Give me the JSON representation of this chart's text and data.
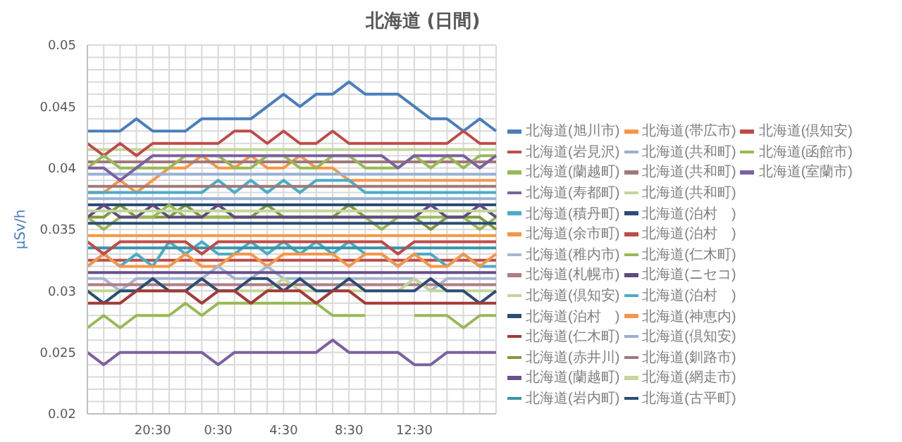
{
  "chart_data": {
    "type": "line",
    "title": "北海道 (日間)",
    "ylabel": "μSv/h",
    "categories": [
      null,
      null,
      null,
      null,
      "20:30",
      null,
      null,
      null,
      "0:30",
      null,
      null,
      null,
      "4:30",
      null,
      null,
      null,
      "8:30",
      null,
      null,
      null,
      "12:30",
      null,
      null,
      null,
      null,
      null
    ],
    "ylim": [
      0.02,
      0.05
    ],
    "yticks": [
      0.02,
      {
        "value": 0.021,
        "label": null
      },
      {
        "value": 0.022,
        "label": null
      },
      {
        "value": 0.023,
        "label": null
      },
      {
        "value": 0.024,
        "label": null
      },
      0.025,
      {
        "value": 0.026,
        "label": null
      },
      {
        "value": 0.027,
        "label": null
      },
      {
        "value": 0.028,
        "label": null
      },
      {
        "value": 0.029,
        "label": null
      },
      0.03,
      {
        "value": 0.031,
        "label": null
      },
      {
        "value": 0.032,
        "label": null
      },
      {
        "value": 0.033,
        "label": null
      },
      0.035,
      {
        "value": 0.038,
        "label": null
      },
      {
        "value": 0.039,
        "label": null
      },
      0.04,
      {
        "value": 0.041,
        "label": null
      },
      {
        "value": 0.042,
        "label": null
      },
      {
        "value": 0.043,
        "label": null
      },
      {
        "value": 0.044,
        "label": null
      },
      0.045,
      {
        "value": 0.046,
        "label": null
      },
      {
        "value": 0.047,
        "label": null
      },
      {
        "value": 0.048,
        "label": null
      },
      {
        "value": 0.049,
        "label": null
      },
      0.05
    ],
    "grid": true,
    "legend": "right",
    "marker": "none",
    "line_style": "solid",
    "series": [
      {
        "name": "北海道(旭川市)",
        "color": "#4a7ebb",
        "values": [
          0.043,
          0.043,
          0.043,
          0.044,
          0.043,
          0.043,
          0.043,
          0.044,
          0.044,
          0.044,
          0.044,
          0.045,
          0.046,
          0.045,
          0.046,
          0.046,
          0.047,
          0.046,
          0.046,
          0.046,
          0.045,
          0.044,
          0.044,
          0.043,
          0.044,
          0.043
        ]
      },
      {
        "name": "北海道(岩見沢)",
        "color": "#be4b48",
        "values": [
          0.0325,
          0.0325,
          0.0325,
          0.0325,
          0.0325,
          0.0325,
          0.0325,
          0.0325,
          0.0325,
          0.0325,
          0.0325,
          0.0325,
          0.0325,
          0.0325,
          0.0325,
          0.0325,
          0.0325,
          0.0325,
          0.0325,
          0.0325,
          0.0325,
          0.0325,
          0.0325,
          0.0325,
          0.0325,
          0.0325
        ]
      },
      {
        "name": "北海道(蘭越町)",
        "color": "#98b954",
        "values": [
          0.027,
          0.028,
          0.027,
          0.028,
          0.028,
          0.028,
          0.029,
          0.028,
          0.029,
          0.029,
          0.029,
          0.029,
          0.029,
          0.029,
          0.029,
          0.028,
          0.028,
          0.028,
          null,
          null,
          0.028,
          0.028,
          0.028,
          0.027,
          0.028,
          0.028
        ]
      },
      {
        "name": "北海道(寿都町)",
        "color": "#7d60a0",
        "values": [
          0.025,
          0.024,
          0.025,
          0.025,
          0.025,
          0.025,
          0.025,
          0.025,
          0.024,
          0.025,
          0.025,
          0.025,
          0.025,
          0.025,
          0.025,
          0.026,
          0.025,
          0.025,
          0.025,
          0.025,
          0.024,
          0.024,
          0.025,
          0.025,
          0.025,
          0.025
        ]
      },
      {
        "name": "北海道(積丹町)",
        "color": "#4bacc6",
        "values": [
          0.032,
          0.033,
          0.032,
          0.033,
          0.032,
          0.034,
          0.033,
          0.034,
          0.033,
          0.033,
          0.034,
          0.033,
          0.034,
          0.033,
          0.034,
          0.033,
          0.034,
          0.033,
          0.033,
          0.032,
          0.033,
          0.033,
          0.032,
          0.033,
          0.032,
          0.032
        ]
      },
      {
        "name": "北海道(余市町)",
        "color": "#f79646",
        "values": [
          0.032,
          0.033,
          0.032,
          0.032,
          0.032,
          0.032,
          0.033,
          0.032,
          0.032,
          0.033,
          0.033,
          0.032,
          0.033,
          0.033,
          0.033,
          0.033,
          0.032,
          0.033,
          0.033,
          0.032,
          0.033,
          0.032,
          0.032,
          0.033,
          0.032,
          0.033
        ]
      },
      {
        "name": "北海道(稚内市)",
        "color": "#a5b6d0",
        "values": [
          0.031,
          0.031,
          0.03,
          0.031,
          0.031,
          0.031,
          0.031,
          0.031,
          0.032,
          0.031,
          0.031,
          0.032,
          0.031,
          0.031,
          0.031,
          0.031,
          0.031,
          0.031,
          0.031,
          0.031,
          0.031,
          0.03,
          0.031,
          0.031,
          0.031,
          0.031
        ]
      },
      {
        "name": "北海道(札幌市)",
        "color": "#b07c84",
        "values": [
          0.0305,
          0.0305,
          0.0305,
          0.0305,
          0.0305,
          0.0305,
          0.0305,
          0.0305,
          0.0305,
          0.0305,
          0.0305,
          0.0305,
          0.0305,
          0.0305,
          0.0305,
          0.0305,
          0.0305,
          0.0305,
          0.0305,
          0.0305,
          0.0305,
          0.0305,
          0.0305,
          0.0305,
          0.0305,
          0.0305
        ]
      },
      {
        "name": "北海道(倶知安)",
        "color": "#c3d69b",
        "values": [
          0.03,
          0.03,
          0.03,
          0.03,
          0.03,
          0.03,
          0.03,
          0.031,
          0.03,
          0.03,
          0.03,
          0.03,
          0.031,
          0.03,
          0.03,
          0.03,
          0.03,
          0.03,
          0.03,
          0.03,
          0.031,
          0.03,
          0.03,
          0.03,
          0.03,
          0.03
        ]
      },
      {
        "name": "北海道(泊村　)",
        "color": "#2c4d75",
        "values": [
          0.03,
          0.029,
          0.03,
          0.03,
          0.031,
          0.03,
          0.03,
          0.031,
          0.03,
          0.03,
          0.031,
          0.031,
          0.03,
          0.031,
          0.03,
          0.03,
          0.031,
          0.03,
          0.03,
          0.03,
          0.03,
          0.031,
          0.03,
          0.03,
          0.029,
          0.03
        ]
      },
      {
        "name": "北海道(仁木町)",
        "color": "#a33a37",
        "values": [
          0.029,
          0.029,
          0.029,
          0.03,
          0.03,
          0.03,
          0.03,
          0.029,
          0.03,
          0.03,
          0.029,
          0.03,
          0.03,
          0.03,
          0.029,
          0.03,
          0.03,
          0.029,
          0.029,
          0.029,
          0.029,
          0.029,
          0.029,
          0.029,
          0.029,
          0.029
        ]
      },
      {
        "name": "北海道(赤井川)",
        "color": "#7e9a3a",
        "values": [
          0.036,
          0.036,
          0.037,
          0.036,
          0.036,
          0.036,
          0.037,
          0.036,
          0.036,
          0.036,
          0.036,
          0.037,
          0.036,
          0.036,
          0.036,
          0.036,
          0.037,
          0.036,
          0.036,
          0.036,
          0.036,
          0.035,
          0.036,
          0.036,
          0.036,
          0.035
        ]
      },
      {
        "name": "北海道(蘭越町)",
        "color": "#6a4f8c",
        "values": [
          0.0315,
          0.0315,
          0.0315,
          0.0315,
          0.0315,
          0.0315,
          0.0315,
          0.0315,
          0.0315,
          0.0315,
          0.0315,
          0.0315,
          0.0315,
          0.0315,
          0.0315,
          0.0315,
          0.0315,
          0.0315,
          0.0315,
          0.0315,
          0.0315,
          0.0315,
          0.0315,
          0.0315,
          0.0315,
          0.0315
        ]
      },
      {
        "name": "北海道(岩内町)",
        "color": "#3a93aa",
        "values": [
          0.0335,
          0.0335,
          0.0335,
          0.0335,
          0.0335,
          0.0335,
          0.0335,
          0.0335,
          0.0335,
          0.0335,
          0.0335,
          0.0335,
          0.0335,
          0.0335,
          0.0335,
          0.0335,
          0.0335,
          0.0335,
          0.0335,
          0.0335,
          0.0335,
          0.0335,
          0.0335,
          0.0335,
          0.0335,
          0.0335
        ]
      },
      {
        "name": "北海道(帯広市)",
        "color": "#f79646",
        "values": [
          0.038,
          0.038,
          0.039,
          0.038,
          0.039,
          0.04,
          0.04,
          0.041,
          0.04,
          0.04,
          0.041,
          0.04,
          0.04,
          0.041,
          0.04,
          0.04,
          0.039,
          0.039,
          0.039,
          0.039,
          0.039,
          0.039,
          0.039,
          0.039,
          0.039,
          0.039
        ]
      },
      {
        "name": "北海道(共和町)",
        "color": "#98b0d4",
        "values": [
          0.0395,
          0.0395,
          0.0395,
          0.0395,
          0.0395,
          0.0395,
          0.0395,
          0.0395,
          0.0395,
          0.0395,
          0.0395,
          0.0395,
          0.0395,
          0.0395,
          0.0395,
          0.0395,
          0.0395,
          0.0395,
          0.0395,
          0.0395,
          0.0395,
          0.0395,
          0.0395,
          0.0395,
          0.0395,
          0.0395
        ]
      },
      {
        "name": "北海道(共和町)",
        "color": "#a07878",
        "values": [
          0.0405,
          0.0405,
          0.0405,
          0.0405,
          0.0405,
          0.0405,
          0.0405,
          0.0405,
          0.0405,
          0.0405,
          0.0405,
          0.0405,
          0.0405,
          0.0405,
          0.0405,
          0.0405,
          0.0405,
          0.0405,
          0.0405,
          0.0405,
          0.0405,
          0.0405,
          0.0405,
          0.0405,
          0.0405,
          0.0405
        ]
      },
      {
        "name": "北海道(共和町)",
        "color": "#c3d69b",
        "values": [
          0.0415,
          0.0415,
          0.0415,
          0.0415,
          0.0415,
          0.0415,
          0.0415,
          0.0415,
          0.0415,
          0.0415,
          0.0415,
          0.0415,
          0.0415,
          0.0415,
          0.0415,
          0.0415,
          0.0415,
          0.0415,
          0.0415,
          0.0415,
          0.0415,
          0.0415,
          0.0415,
          0.0415,
          0.0415,
          0.0415
        ]
      },
      {
        "name": "北海道(泊村　)",
        "color": "#2c4d75",
        "values": [
          0.037,
          0.037,
          0.037,
          0.037,
          0.037,
          0.037,
          0.037,
          0.037,
          0.037,
          0.037,
          0.037,
          0.037,
          0.037,
          0.037,
          0.037,
          0.037,
          0.037,
          0.037,
          0.037,
          0.037,
          0.037,
          0.037,
          0.037,
          0.037,
          0.037,
          0.037
        ]
      },
      {
        "name": "北海道(泊村　)",
        "color": "#be4b48",
        "values": [
          0.034,
          0.033,
          0.034,
          0.034,
          0.034,
          0.034,
          0.034,
          0.033,
          0.034,
          0.034,
          0.034,
          0.034,
          0.034,
          0.034,
          0.034,
          0.034,
          0.034,
          0.034,
          0.034,
          0.033,
          0.034,
          0.034,
          0.034,
          0.034,
          0.034,
          0.034
        ]
      },
      {
        "name": "北海道(仁木町)",
        "color": "#98b954",
        "values": [
          0.036,
          0.035,
          0.036,
          0.036,
          0.036,
          0.037,
          0.036,
          0.036,
          0.036,
          0.036,
          0.036,
          0.036,
          0.036,
          0.036,
          0.036,
          0.036,
          0.036,
          0.036,
          0.035,
          0.036,
          0.036,
          0.036,
          0.036,
          0.036,
          0.035,
          0.036
        ]
      },
      {
        "name": "北海道(ニセコ)",
        "color": "#5f4a80",
        "values": [
          0.036,
          0.037,
          0.036,
          0.036,
          0.037,
          0.036,
          0.036,
          0.036,
          0.037,
          0.036,
          0.036,
          0.036,
          0.036,
          0.036,
          0.036,
          0.036,
          0.036,
          0.036,
          0.036,
          0.036,
          0.036,
          0.037,
          0.036,
          0.036,
          0.037,
          0.036
        ]
      },
      {
        "name": "北海道(泊村　)",
        "color": "#4bacc6",
        "values": [
          0.038,
          0.038,
          0.038,
          0.038,
          0.038,
          0.038,
          0.038,
          0.038,
          0.039,
          0.038,
          0.039,
          0.038,
          0.039,
          0.038,
          0.039,
          0.039,
          0.039,
          0.038,
          0.038,
          0.038,
          0.038,
          0.038,
          0.038,
          0.038,
          0.038,
          0.038
        ]
      },
      {
        "name": "北海道(神恵内)",
        "color": "#f79646",
        "values": [
          0.0345,
          0.0345,
          0.0345,
          0.0345,
          0.0345,
          0.0345,
          0.0345,
          0.0345,
          0.0345,
          0.0345,
          0.0345,
          0.0345,
          0.0345,
          0.0345,
          0.0345,
          0.0345,
          0.0345,
          0.0345,
          0.0345,
          0.0345,
          0.0345,
          0.0345,
          0.0345,
          0.0345,
          0.0345,
          0.0345
        ]
      },
      {
        "name": "北海道(倶知安)",
        "color": "#98b0d4",
        "values": [
          0.0375,
          0.0375,
          0.0375,
          0.0375,
          0.0375,
          0.0375,
          0.0375,
          0.0375,
          0.0375,
          0.0375,
          0.0375,
          0.0375,
          0.0375,
          0.0375,
          0.0375,
          0.0375,
          0.0375,
          0.0375,
          0.0375,
          0.0375,
          0.0375,
          0.0375,
          0.0375,
          0.0375,
          0.0375,
          0.0375
        ]
      },
      {
        "name": "北海道(釧路市)",
        "color": "#a07878",
        "values": [
          0.0385,
          0.0385,
          0.0385,
          0.0385,
          0.0385,
          0.0385,
          0.0385,
          0.0385,
          0.0385,
          0.0385,
          0.0385,
          0.0385,
          0.0385,
          0.0385,
          0.0385,
          0.0385,
          0.0385,
          0.0385,
          0.0385,
          0.0385,
          0.0385,
          0.0385,
          0.0385,
          0.0385,
          0.0385,
          0.0385
        ]
      },
      {
        "name": "北海道(網走市)",
        "color": "#c3d69b",
        "values": [
          0.0365,
          0.0365,
          0.0365,
          0.0365,
          0.0365,
          0.0365,
          0.0365,
          0.0365,
          0.0365,
          0.0365,
          0.0365,
          0.0365,
          0.0365,
          0.0365,
          0.0365,
          0.0365,
          0.0365,
          0.0365,
          0.0365,
          0.0365,
          0.0365,
          0.0365,
          0.0365,
          0.0365,
          0.0365,
          0.0365
        ]
      },
      {
        "name": "北海道(古平町)",
        "color": "#2c4d75",
        "values": [
          0.0355,
          0.0355,
          0.0355,
          0.0355,
          0.0355,
          0.0355,
          0.0355,
          0.0355,
          0.0355,
          0.0355,
          0.0355,
          0.0355,
          0.0355,
          0.0355,
          0.0355,
          0.0355,
          0.0355,
          0.0355,
          0.0355,
          0.0355,
          0.0355,
          0.0355,
          0.0355,
          0.0355,
          0.0355,
          0.0355
        ]
      },
      {
        "name": "北海道(倶知安)",
        "color": "#be4b48",
        "values": [
          0.042,
          0.041,
          0.042,
          0.041,
          0.042,
          0.042,
          0.042,
          0.042,
          0.042,
          0.043,
          0.043,
          0.042,
          0.043,
          0.042,
          0.042,
          0.043,
          0.042,
          0.042,
          0.042,
          0.042,
          0.042,
          0.042,
          0.042,
          0.043,
          0.042,
          0.042
        ]
      },
      {
        "name": "北海道(函館市)",
        "color": "#98b954",
        "values": [
          0.04,
          0.041,
          0.04,
          0.04,
          0.04,
          0.04,
          0.041,
          0.041,
          0.041,
          0.04,
          0.04,
          0.041,
          0.041,
          0.04,
          0.04,
          0.041,
          0.041,
          0.04,
          0.04,
          0.04,
          0.041,
          0.04,
          0.041,
          0.04,
          0.041,
          0.041
        ]
      },
      {
        "name": "北海道(室蘭市)",
        "color": "#7d60a0",
        "values": [
          0.04,
          0.04,
          0.039,
          0.04,
          0.041,
          0.041,
          0.041,
          0.041,
          0.041,
          0.041,
          0.041,
          0.041,
          0.041,
          0.041,
          0.041,
          0.041,
          0.041,
          0.041,
          0.041,
          0.04,
          0.041,
          0.041,
          0.041,
          0.041,
          0.04,
          0.041
        ]
      }
    ]
  }
}
